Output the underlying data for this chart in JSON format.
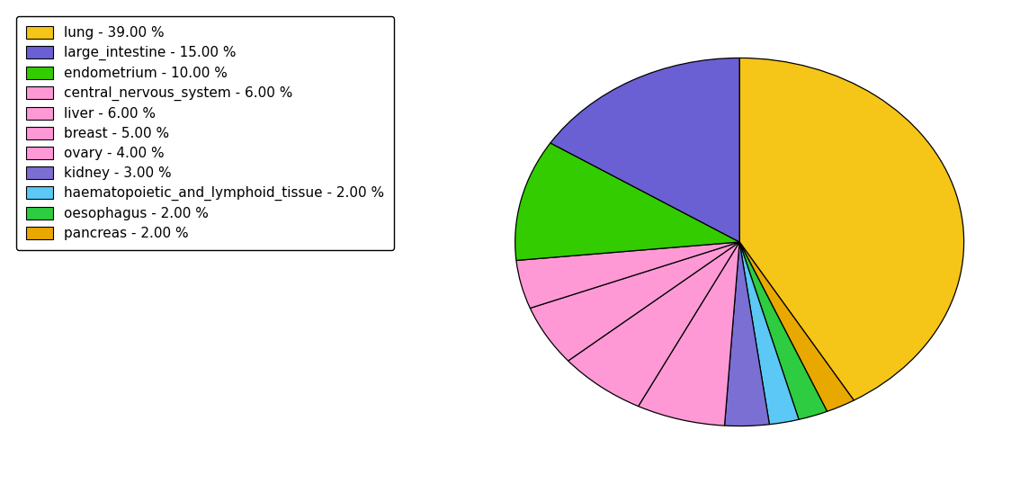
{
  "labels": [
    "lung",
    "pancreas",
    "oesophagus",
    "haematopoietic_and_lymphoid_tissue",
    "kidney",
    "central_nervous_system",
    "liver",
    "breast",
    "ovary",
    "endometrium",
    "large_intestine"
  ],
  "values": [
    39,
    2,
    2,
    2,
    3,
    6,
    6,
    5,
    4,
    10,
    15
  ],
  "colors": [
    "#F5C518",
    "#E8A800",
    "#2ECC40",
    "#5BC8F5",
    "#7B6FD4",
    "#FF99D6",
    "#FF99D6",
    "#FF99D6",
    "#FF99D6",
    "#33CC00",
    "#6B5FD4"
  ],
  "legend_labels": [
    "lung - 39.00 %",
    "large_intestine - 15.00 %",
    "endometrium - 10.00 %",
    "central_nervous_system - 6.00 %",
    "liver - 6.00 %",
    "breast - 5.00 %",
    "ovary - 4.00 %",
    "kidney - 3.00 %",
    "haematopoietic_and_lymphoid_tissue - 2.00 %",
    "oesophagus - 2.00 %",
    "pancreas - 2.00 %"
  ],
  "legend_colors": [
    "#F5C518",
    "#6B5FD4",
    "#33CC00",
    "#FF99D6",
    "#FF99D6",
    "#FF99D6",
    "#FF99D6",
    "#7B6FD4",
    "#5BC8F5",
    "#2ECC40",
    "#E8A800"
  ],
  "figure_width": 11.34,
  "figure_height": 5.38,
  "dpi": 100,
  "startangle": 90,
  "counterclock": false
}
